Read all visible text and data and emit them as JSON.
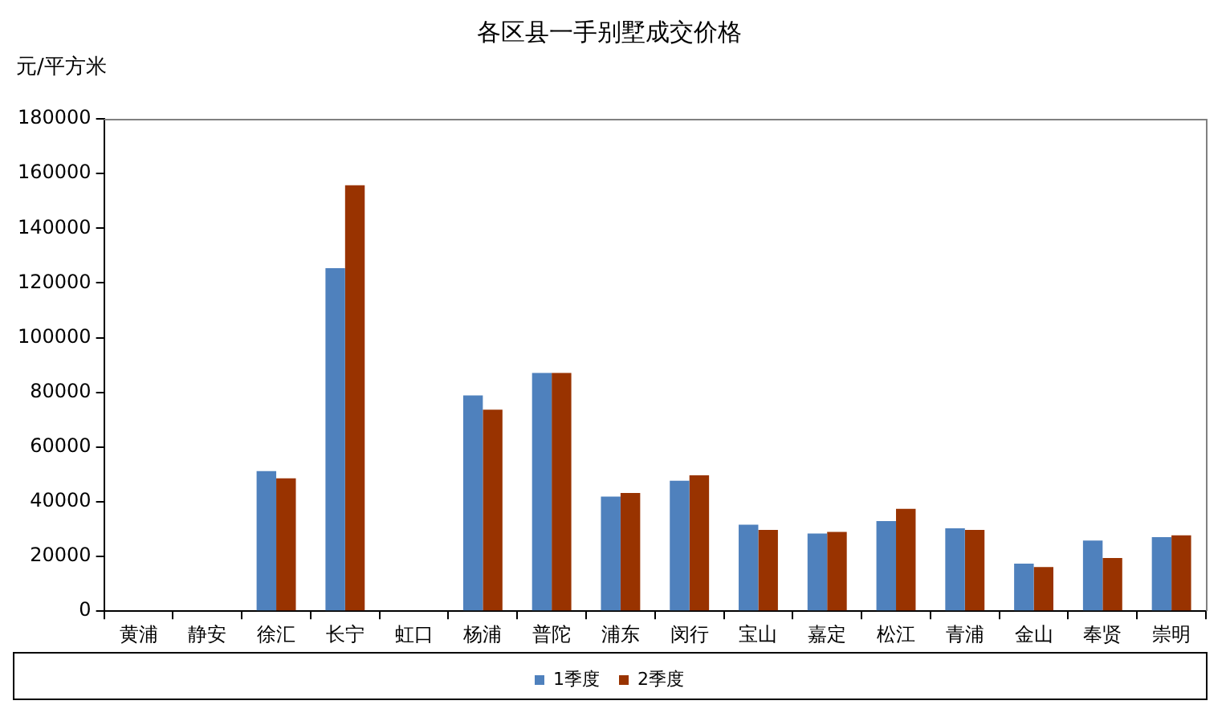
{
  "chart_data": {
    "type": "bar",
    "title": "各区县一手别墅成交价格",
    "ylabel": "元/平方米",
    "categories": [
      "黄浦",
      "静安",
      "徐汇",
      "长宁",
      "虹口",
      "杨浦",
      "普陀",
      "浦东",
      "闵行",
      "宝山",
      "嘉定",
      "松江",
      "青浦",
      "金山",
      "奉贤",
      "崇明"
    ],
    "series": [
      {
        "name": "1季度",
        "color": "#4f81bd",
        "values": [
          null,
          null,
          51200,
          125400,
          null,
          78900,
          87100,
          41900,
          47700,
          31600,
          28400,
          32900,
          30300,
          17400,
          25800,
          27100
        ]
      },
      {
        "name": "2季度",
        "color": "#993300",
        "values": [
          null,
          null,
          48600,
          155700,
          null,
          73700,
          87100,
          43200,
          49700,
          29700,
          29000,
          37400,
          29700,
          16100,
          19400,
          27700
        ]
      }
    ],
    "ylim": [
      0,
      180000
    ],
    "yticks": [
      0,
      20000,
      40000,
      60000,
      80000,
      100000,
      120000,
      140000,
      160000,
      180000
    ],
    "grid": false,
    "legend": "bottom"
  }
}
